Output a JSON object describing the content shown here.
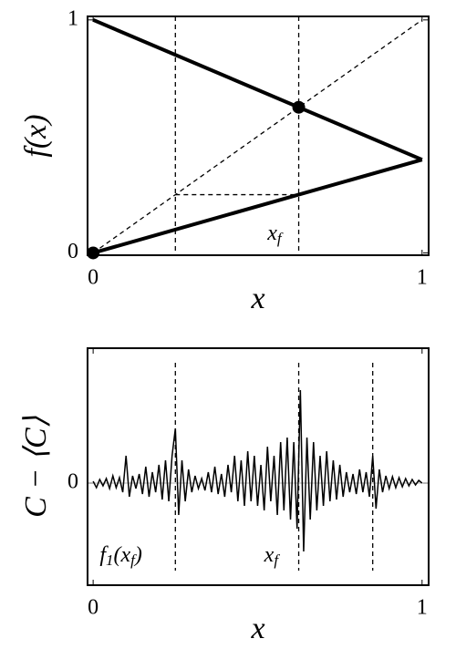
{
  "chart_data": [
    {
      "type": "line",
      "ylabel": "f(x)",
      "xlabel": "x",
      "xlim": [
        -0.017,
        1.02
      ],
      "ylim": [
        -0.01,
        1.015
      ],
      "xticks": [
        0,
        1
      ],
      "yticks": [
        0,
        1
      ],
      "color": "#000000",
      "lines": [
        {
          "x": [
            0,
            1
          ],
          "values": [
            1,
            0.4
          ],
          "style": "solid"
        },
        {
          "x": [
            0,
            1
          ],
          "values": [
            0,
            0.4
          ],
          "style": "solid"
        },
        {
          "x": [
            0,
            1
          ],
          "values": [
            0,
            1
          ],
          "style": "dashed"
        },
        {
          "x": [
            0.25,
            0.625
          ],
          "values": [
            0.25,
            0.25
          ],
          "style": "dashed"
        }
      ],
      "vlines": [
        0.25,
        0.625
      ],
      "points": {
        "x": [
          0,
          0.625
        ],
        "values": [
          0,
          0.625
        ]
      },
      "annotations": [
        {
          "x": 0.53,
          "y": 0.08,
          "parts": [
            {
              "text": "x"
            },
            {
              "sub": "f"
            }
          ]
        }
      ]
    },
    {
      "type": "line",
      "ylabel": "C − ⟨C⟩",
      "xlabel": "x",
      "xlim": [
        -0.017,
        1.02
      ],
      "ylim": [
        -1.12,
        1.48
      ],
      "xticks": [
        0,
        1
      ],
      "yticks": [
        0
      ],
      "color": "#000000",
      "x": [
        0,
        0.01,
        0.02,
        0.03,
        0.04,
        0.05,
        0.06,
        0.07,
        0.08,
        0.09,
        0.1,
        0.11,
        0.12,
        0.13,
        0.14,
        0.15,
        0.16,
        0.17,
        0.18,
        0.19,
        0.2,
        0.21,
        0.22,
        0.23,
        0.24,
        0.25,
        0.26,
        0.27,
        0.28,
        0.29,
        0.3,
        0.31,
        0.32,
        0.33,
        0.34,
        0.35,
        0.36,
        0.37,
        0.38,
        0.39,
        0.4,
        0.41,
        0.42,
        0.43,
        0.44,
        0.45,
        0.46,
        0.47,
        0.48,
        0.49,
        0.5,
        0.51,
        0.52,
        0.53,
        0.54,
        0.55,
        0.56,
        0.57,
        0.58,
        0.59,
        0.6,
        0.61,
        0.62,
        0.63,
        0.64,
        0.65,
        0.66,
        0.67,
        0.68,
        0.69,
        0.7,
        0.71,
        0.72,
        0.73,
        0.74,
        0.75,
        0.76,
        0.77,
        0.78,
        0.79,
        0.8,
        0.81,
        0.82,
        0.83,
        0.84,
        0.85,
        0.86,
        0.87,
        0.88,
        0.89,
        0.9,
        0.91,
        0.92,
        0.93,
        0.94,
        0.95,
        0.96,
        0.97,
        0.98,
        0.99,
        1
      ],
      "values": [
        0.02,
        -0.05,
        0.04,
        -0.03,
        0.05,
        -0.06,
        0.08,
        -0.05,
        0.06,
        -0.1,
        0.3,
        -0.15,
        0.08,
        -0.06,
        0.1,
        -0.12,
        0.18,
        -0.15,
        0.12,
        -0.1,
        0.2,
        -0.18,
        0.25,
        -0.2,
        0.3,
        0.6,
        -0.35,
        0.25,
        -0.2,
        0.15,
        -0.1,
        0.08,
        -0.06,
        0.05,
        -0.08,
        0.12,
        -0.1,
        0.18,
        -0.12,
        0.1,
        -0.15,
        0.2,
        -0.1,
        0.3,
        -0.2,
        0.25,
        -0.25,
        0.35,
        -0.2,
        0.3,
        -0.25,
        0.2,
        -0.3,
        0.4,
        -0.2,
        0.3,
        -0.35,
        0.45,
        -0.3,
        0.5,
        -0.4,
        0.45,
        -0.5,
        1.02,
        -0.75,
        0.5,
        -0.4,
        0.45,
        -0.3,
        0.3,
        -0.25,
        0.35,
        -0.2,
        0.25,
        -0.18,
        0.2,
        -0.15,
        0.12,
        -0.1,
        0.1,
        -0.12,
        0.15,
        -0.1,
        0.12,
        -0.15,
        0.3,
        -0.28,
        0.15,
        -0.1,
        0.08,
        -0.06,
        0.07,
        -0.05,
        0.06,
        -0.04,
        0.05,
        -0.03,
        0.04,
        -0.02,
        0.03,
        0
      ],
      "vlines": [
        0.25,
        0.625,
        0.85
      ],
      "annotations": [
        {
          "x": 0.02,
          "y": -0.8,
          "parts": [
            {
              "text": "f"
            },
            {
              "sub": "1"
            },
            {
              "text": "(x"
            },
            {
              "sub": "f"
            },
            {
              "text": ")"
            }
          ]
        },
        {
          "x": 0.52,
          "y": -0.8,
          "parts": [
            {
              "text": "x"
            },
            {
              "sub": "f"
            }
          ]
        }
      ]
    }
  ]
}
